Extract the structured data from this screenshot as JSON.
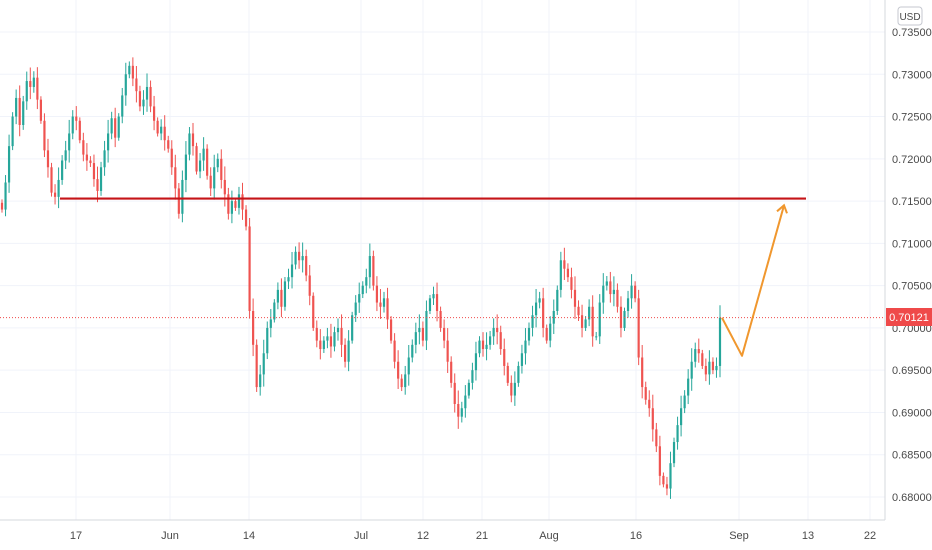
{
  "chart_data": {
    "type": "candlestick",
    "currency": "USD",
    "y_axis": {
      "ticks": [
        "0.73500",
        "0.73000",
        "0.72500",
        "0.72000",
        "0.71500",
        "0.71000",
        "0.70500",
        "0.70000",
        "0.69500",
        "0.69000",
        "0.68500",
        "0.68000"
      ],
      "ylim": [
        0.6775,
        0.7375
      ]
    },
    "x_axis": {
      "ticks": [
        "17",
        "Jun",
        "14",
        "Jul",
        "12",
        "21",
        "Aug",
        "16",
        "Sep",
        "13",
        "22"
      ]
    },
    "last_price": "0.70121",
    "close_series": [
      0.714,
      0.7172,
      0.7215,
      0.725,
      0.7272,
      0.724,
      0.7268,
      0.7292,
      0.7285,
      0.7296,
      0.727,
      0.7245,
      0.721,
      0.719,
      0.716,
      0.7155,
      0.7175,
      0.7198,
      0.721,
      0.723,
      0.725,
      0.7245,
      0.7222,
      0.7205,
      0.7198,
      0.7195,
      0.7176,
      0.7162,
      0.719,
      0.721,
      0.723,
      0.7248,
      0.7225,
      0.725,
      0.7275,
      0.73,
      0.731,
      0.7295,
      0.728,
      0.7262,
      0.727,
      0.7285,
      0.7262,
      0.7245,
      0.723,
      0.7238,
      0.7222,
      0.7212,
      0.719,
      0.7165,
      0.7135,
      0.7175,
      0.7205,
      0.723,
      0.7215,
      0.7185,
      0.7198,
      0.7212,
      0.718,
      0.7165,
      0.719,
      0.72,
      0.7175,
      0.7158,
      0.7135,
      0.715,
      0.7142,
      0.7158,
      0.714,
      0.712,
      0.702,
      0.698,
      0.693,
      0.6945,
      0.697,
      0.7,
      0.701,
      0.703,
      0.7045,
      0.7025,
      0.7055,
      0.706,
      0.7075,
      0.709,
      0.708,
      0.7085,
      0.7062,
      0.7038,
      0.7,
      0.6985,
      0.6975,
      0.6985,
      0.699,
      0.6978,
      0.6995,
      0.7,
      0.698,
      0.696,
      0.6985,
      0.7015,
      0.703,
      0.704,
      0.705,
      0.706,
      0.7085,
      0.705,
      0.703,
      0.7025,
      0.7035,
      0.701,
      0.6985,
      0.696,
      0.694,
      0.693,
      0.6945,
      0.6965,
      0.698,
      0.6995,
      0.7,
      0.6985,
      0.702,
      0.7035,
      0.704,
      0.702,
      0.7,
      0.6985,
      0.696,
      0.6935,
      0.691,
      0.6895,
      0.6905,
      0.692,
      0.6935,
      0.695,
      0.697,
      0.6985,
      0.6975,
      0.698,
      0.699,
      0.7,
      0.6995,
      0.6975,
      0.6955,
      0.6935,
      0.692,
      0.6935,
      0.6955,
      0.697,
      0.6985,
      0.7,
      0.7015,
      0.703,
      0.7035,
      0.7,
      0.6985,
      0.7005,
      0.702,
      0.7045,
      0.708,
      0.707,
      0.706,
      0.7045,
      0.7025,
      0.7015,
      0.7,
      0.701,
      0.7025,
      0.699,
      0.699,
      0.703,
      0.705,
      0.7055,
      0.704,
      0.7045,
      0.7025,
      0.7,
      0.702,
      0.7035,
      0.705,
      0.7035,
      0.6965,
      0.693,
      0.6915,
      0.6905,
      0.688,
      0.686,
      0.6825,
      0.6815,
      0.681,
      0.684,
      0.6865,
      0.6885,
      0.6905,
      0.692,
      0.694,
      0.696,
      0.6975,
      0.697,
      0.6955,
      0.6945,
      0.696,
      0.695,
      0.6955,
      0.7012
    ],
    "annotations": {
      "horizontal_line": {
        "value": 0.7153,
        "color": "#c51418"
      },
      "projection_path": {
        "points": [
          [
            0.7012,
            0
          ],
          [
            0.6967,
            1
          ],
          [
            0.7145,
            2
          ]
        ],
        "color": "#f0972e"
      }
    },
    "colors": {
      "up": "#26a69a",
      "down": "#ef5350",
      "grid": "#f0f3fa",
      "axis_text": "#4a4a4a",
      "price_tag": "#ef4a4a"
    },
    "grid": true
  }
}
